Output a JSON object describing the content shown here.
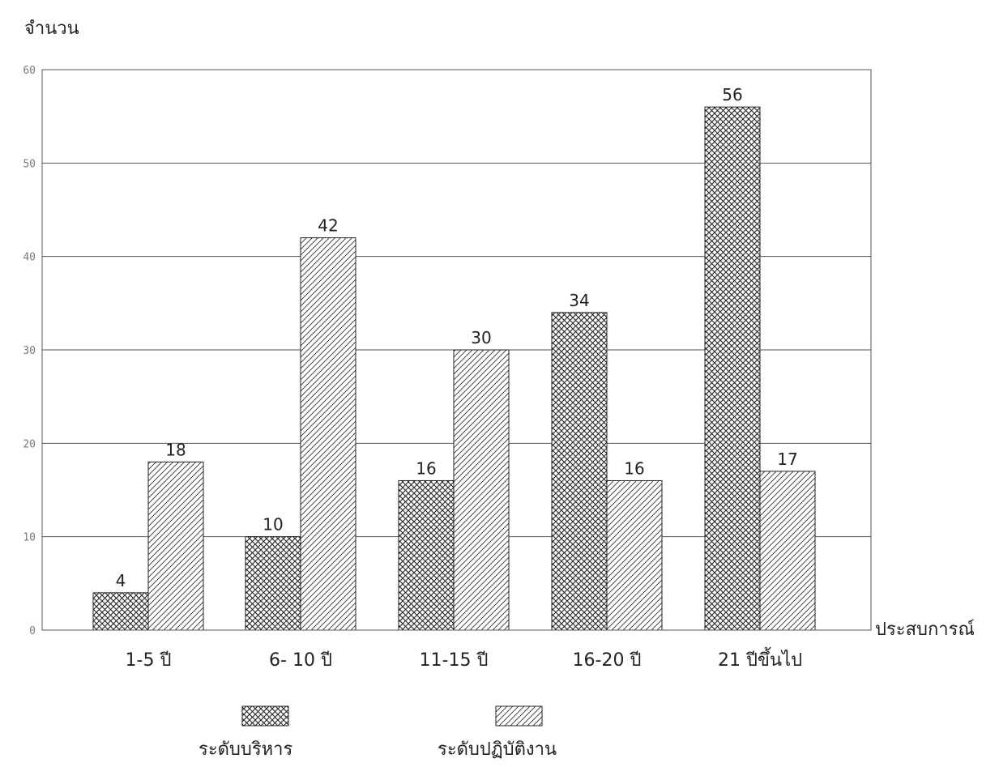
{
  "chart_data": {
    "type": "bar",
    "title": "",
    "ylabel": "จำนวน",
    "xlabel": "ประสบการณ์",
    "categories": [
      "1-5 ปี",
      "6- 10 ปี",
      "11-15 ปี",
      "16-20  ปี",
      "21 ปีขึ้นไป"
    ],
    "series": [
      {
        "name": "ระดับบริหาร",
        "values": [
          4,
          10,
          16,
          34,
          56
        ],
        "pattern": "crosshatch"
      },
      {
        "name": "ระดับปฏิบัติงาน",
        "values": [
          18,
          42,
          30,
          16,
          17
        ],
        "pattern": "diagonal"
      }
    ],
    "ylim": [
      0,
      60
    ],
    "yticks": [
      0,
      10,
      20,
      30,
      40,
      50,
      60
    ],
    "grid": true,
    "legend_position": "bottom",
    "colors": {
      "ink": "#222222",
      "grid": "#555555",
      "tick": "#7a7a7a"
    }
  }
}
